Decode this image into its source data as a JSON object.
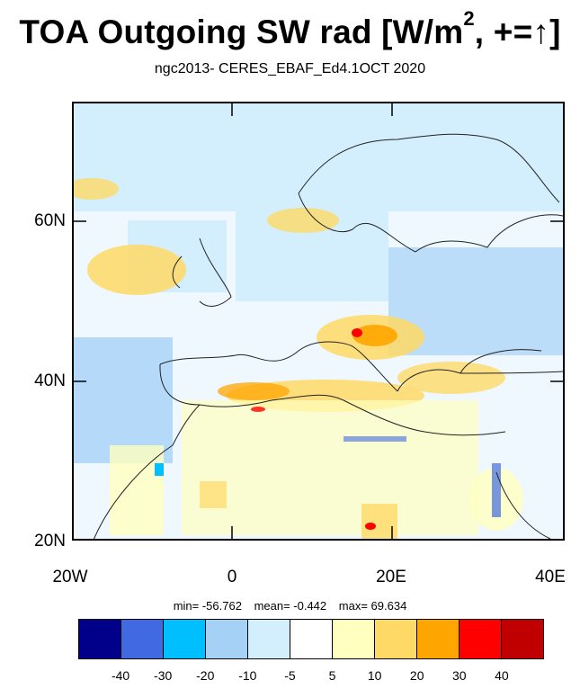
{
  "title": {
    "main": "TOA Outgoing SW rad [W/m",
    "sup": "2",
    "tail": ", +=↑]"
  },
  "subtitle": "ngc2013- CERES_EBAF_Ed4.1OCT 2020",
  "lat_labels": [
    "60N",
    "40N",
    "20N"
  ],
  "lon_labels": [
    "20W",
    "0",
    "20E",
    "40E"
  ],
  "stats": {
    "min": "min= -56.762",
    "mean": "mean=  -0.442",
    "max": "max=  69.634"
  },
  "colorbar": {
    "colors": [
      "#00008b",
      "#4169e1",
      "#00bfff",
      "#a6d1f7",
      "#d3eefc",
      "#ffffff",
      "#ffffbf",
      "#ffd966",
      "#ffa500",
      "#ff0000",
      "#c00000"
    ],
    "labels": [
      "-40",
      "-30",
      "-20",
      "-10",
      "-5",
      "5",
      "10",
      "20",
      "30",
      "40"
    ]
  }
}
